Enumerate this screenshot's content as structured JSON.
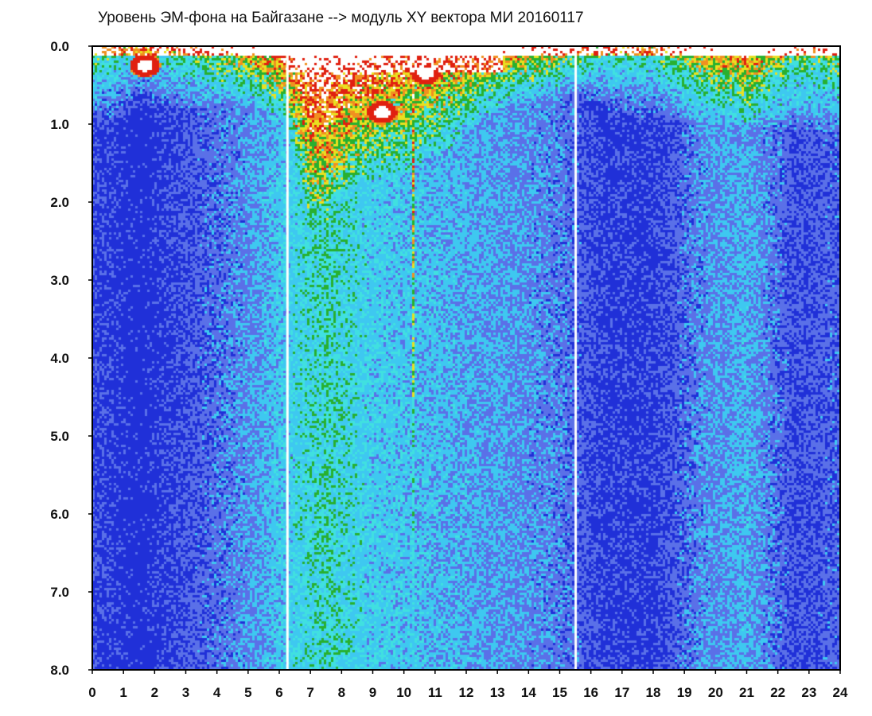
{
  "chart_data": {
    "type": "heatmap",
    "title": "Уровень ЭМ-фона на Байгазане   -->  модуль XY вектора МИ   20160117",
    "xlabel": "",
    "ylabel": "",
    "xlim": [
      0,
      24
    ],
    "ylim": [
      0,
      8
    ],
    "y_inverted": true,
    "x_tick_labels": [
      "0",
      "1",
      "2",
      "3",
      "4",
      "5",
      "6",
      "7",
      "8",
      "9",
      "10",
      "11",
      "12",
      "13",
      "14",
      "15",
      "16",
      "17",
      "18",
      "19",
      "20",
      "21",
      "22",
      "23",
      "24"
    ],
    "y_tick_labels": [
      "0.0",
      "1.0",
      "2.0",
      "3.0",
      "4.0",
      "5.0",
      "6.0",
      "7.0",
      "8.0"
    ],
    "grid": false,
    "legend": "none",
    "colormap": [
      "#2030d8",
      "#5a70e8",
      "#3ec8f0",
      "#40e0e0",
      "#28b030",
      "#e8e020",
      "#f09020",
      "#e02010",
      "#ffffff"
    ],
    "background_level": [
      {
        "hour": 0,
        "level": 0.15
      },
      {
        "hour": 1.5,
        "level": 0.05
      },
      {
        "hour": 3,
        "level": 0.18
      },
      {
        "hour": 5,
        "level": 0.32
      },
      {
        "hour": 6.2,
        "level": 0.45
      },
      {
        "hour": 7.5,
        "level": 0.55
      },
      {
        "hour": 9,
        "level": 0.45
      },
      {
        "hour": 11,
        "level": 0.4
      },
      {
        "hour": 13,
        "level": 0.35
      },
      {
        "hour": 15,
        "level": 0.28
      },
      {
        "hour": 16.5,
        "level": 0.12
      },
      {
        "hour": 18,
        "level": 0.12
      },
      {
        "hour": 19.5,
        "level": 0.3
      },
      {
        "hour": 21,
        "level": 0.38
      },
      {
        "hour": 22.5,
        "level": 0.18
      },
      {
        "hour": 24,
        "level": 0.22
      }
    ],
    "surface_band_depth": [
      {
        "hour": 0,
        "depth": 1.0
      },
      {
        "hour": 2,
        "depth": 0.8
      },
      {
        "hour": 5,
        "depth": 0.75
      },
      {
        "hour": 6.2,
        "depth": 0.9
      },
      {
        "hour": 7,
        "depth": 2.2
      },
      {
        "hour": 8,
        "depth": 1.8
      },
      {
        "hour": 10,
        "depth": 1.6
      },
      {
        "hour": 11.5,
        "depth": 1.3
      },
      {
        "hour": 13,
        "depth": 0.8
      },
      {
        "hour": 15.5,
        "depth": 0.6
      },
      {
        "hour": 17,
        "depth": 0.9
      },
      {
        "hour": 20,
        "depth": 1.0
      },
      {
        "hour": 24,
        "depth": 1.1
      }
    ],
    "streaks": [
      {
        "hour": 6.2,
        "intensity": 0.7
      },
      {
        "hour": 6.5,
        "intensity": 0.6
      },
      {
        "hour": 6.8,
        "intensity": 0.65
      },
      {
        "hour": 7.1,
        "intensity": 0.8
      },
      {
        "hour": 7.3,
        "intensity": 0.9
      },
      {
        "hour": 7.55,
        "intensity": 0.85
      },
      {
        "hour": 7.9,
        "intensity": 0.6
      },
      {
        "hour": 8.2,
        "intensity": 0.5
      },
      {
        "hour": 8.8,
        "intensity": 0.45
      },
      {
        "hour": 9.3,
        "intensity": 0.5
      },
      {
        "hour": 9.8,
        "intensity": 0.45
      },
      {
        "hour": 10.3,
        "intensity": 0.95
      },
      {
        "hour": 10.8,
        "intensity": 0.5
      },
      {
        "hour": 11.4,
        "intensity": 0.55
      },
      {
        "hour": 11.9,
        "intensity": 0.45
      },
      {
        "hour": 12.6,
        "intensity": 0.4
      },
      {
        "hour": 13.2,
        "intensity": 0.35
      },
      {
        "hour": 14.0,
        "intensity": 0.3
      }
    ],
    "gaps": [
      {
        "hour": 15.5
      },
      {
        "hour": 6.25
      }
    ],
    "hot_spots": [
      {
        "hour": 1.7,
        "depth": 0.25,
        "label": ""
      },
      {
        "hour": 9.3,
        "depth": 0.85,
        "label": ""
      },
      {
        "hour": 10.7,
        "depth": 0.35,
        "label": ""
      }
    ],
    "saturated_band": {
      "hour_start": 6.3,
      "hour_end": 13.2,
      "depth": 0.35
    }
  }
}
